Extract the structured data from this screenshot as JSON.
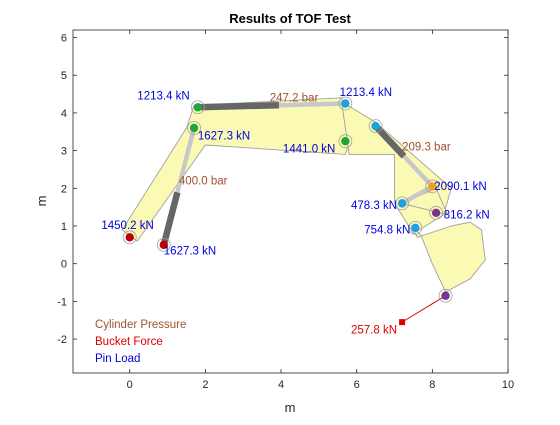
{
  "chart_data": {
    "type": "scatter",
    "title": "Results of TOF Test",
    "xlabel": "m",
    "ylabel": "m",
    "xlim": [
      -1.5,
      10
    ],
    "ylim": [
      -2.9,
      6.2
    ],
    "xticks": [
      0,
      2,
      4,
      6,
      8,
      10
    ],
    "yticks": [
      -2,
      -1,
      0,
      1,
      2,
      3,
      4,
      5,
      6
    ],
    "grid": false,
    "links": [
      {
        "name": "boom",
        "outline": [
          [
            -0.2,
            0.9
          ],
          [
            1.5,
            3.6
          ],
          [
            1.7,
            4.2
          ],
          [
            5.6,
            4.4
          ],
          [
            5.9,
            3.5
          ],
          [
            5.7,
            2.9
          ],
          [
            2.0,
            3.15
          ],
          [
            0.2,
            0.6
          ]
        ]
      },
      {
        "name": "arm",
        "outline": [
          [
            5.6,
            4.3
          ],
          [
            6.5,
            3.75
          ],
          [
            8.5,
            2.0
          ],
          [
            8.3,
            1.3
          ],
          [
            7.5,
            0.8
          ],
          [
            7.0,
            1.6
          ],
          [
            7.0,
            2.9
          ],
          [
            5.8,
            2.9
          ]
        ]
      },
      {
        "name": "bucket",
        "outline": [
          [
            7.45,
            1.0
          ],
          [
            7.6,
            0.7
          ],
          [
            8.5,
            1.0
          ],
          [
            9.0,
            1.1
          ],
          [
            9.3,
            0.9
          ],
          [
            9.4,
            0.1
          ],
          [
            9.0,
            -0.4
          ],
          [
            8.35,
            -0.75
          ],
          [
            8.0,
            0.0
          ],
          [
            7.7,
            0.75
          ]
        ]
      },
      {
        "name": "bucket-link",
        "outline": [
          [
            7.2,
            1.6
          ],
          [
            8.1,
            2.0
          ],
          [
            8.4,
            1.3
          ]
        ]
      }
    ],
    "cylinders": [
      {
        "name": "boom-cylinder",
        "from": [
          0.9,
          0.5
        ],
        "to": [
          1.7,
          3.6
        ],
        "split": 0.45,
        "label": "400.0 bar",
        "label_at": [
          1.3,
          2.1
        ]
      },
      {
        "name": "arm-cylinder",
        "from": [
          1.8,
          4.15
        ],
        "to": [
          5.7,
          4.25
        ],
        "split": 0.55,
        "label": "247.2 bar",
        "label_at": [
          3.7,
          4.3
        ]
      },
      {
        "name": "bucket-cylinder",
        "from": [
          6.5,
          3.65
        ],
        "to": [
          8.0,
          2.05
        ],
        "split": 0.5,
        "label": "209.3 bar",
        "label_at": [
          7.2,
          3.0
        ]
      },
      {
        "name": "bucket-link-rod",
        "from": [
          7.2,
          1.6
        ],
        "to": [
          8.0,
          2.05
        ],
        "split": 0.0
      }
    ],
    "pins": [
      {
        "name": "boom-foot-pin",
        "x": 0.0,
        "y": 0.7,
        "color": "#c00000",
        "label": "1450.2 kN",
        "label_at": [
          -0.75,
          0.92
        ]
      },
      {
        "name": "boom-cylinder-base-pin",
        "x": 0.9,
        "y": 0.5,
        "color": "#c00000",
        "label": "1627.3 kN",
        "label_at": [
          0.9,
          0.25
        ]
      },
      {
        "name": "boom-cylinder-rod-pin",
        "x": 1.7,
        "y": 3.6,
        "color": "#22a539",
        "label": "1627.3 kN",
        "label_at": [
          1.8,
          3.3
        ]
      },
      {
        "name": "arm-cylinder-base-pin",
        "x": 1.8,
        "y": 4.15,
        "color": "#22a539",
        "label": "1213.4 kN",
        "label_at": [
          0.2,
          4.35
        ]
      },
      {
        "name": "arm-cylinder-rod-pin",
        "x": 5.7,
        "y": 4.25,
        "color": "#1ea0e0",
        "label": "1213.4 kN",
        "label_at": [
          5.55,
          4.45
        ]
      },
      {
        "name": "boom-tip-pin",
        "x": 5.7,
        "y": 3.25,
        "color": "#22a539",
        "label": "1441.0 kN",
        "label_at": [
          4.05,
          2.95
        ]
      },
      {
        "name": "bucket-cylinder-base-pin",
        "x": 6.5,
        "y": 3.65,
        "color": "#1ea0e0",
        "label": "",
        "label_at": [
          0,
          0
        ]
      },
      {
        "name": "bucket-cylinder-rod-pin",
        "x": 8.0,
        "y": 2.05,
        "color": "#f0a020",
        "label": "2090.1 kN",
        "label_at": [
          8.05,
          1.95
        ]
      },
      {
        "name": "link-pin",
        "x": 7.2,
        "y": 1.6,
        "color": "#1ea0e0",
        "label": "478.3 kN",
        "label_at": [
          5.85,
          1.45
        ]
      },
      {
        "name": "bucket-link-pin",
        "x": 8.1,
        "y": 1.35,
        "color": "#7a3490",
        "label": "816.2 kN",
        "label_at": [
          8.3,
          1.2
        ]
      },
      {
        "name": "arm-tip-pin",
        "x": 7.55,
        "y": 0.95,
        "color": "#1ea0e0",
        "label": "754.8 kN",
        "label_at": [
          6.2,
          0.8
        ]
      },
      {
        "name": "bucket-tip-pin",
        "x": 8.35,
        "y": -0.85,
        "color": "#7a3490",
        "label": "",
        "label_at": [
          0,
          0
        ]
      }
    ],
    "bucket_force": {
      "from": [
        8.35,
        -0.85
      ],
      "to": [
        7.2,
        -1.55
      ],
      "label": "257.8 kN",
      "label_at": [
        5.85,
        -1.85
      ]
    },
    "legend": {
      "placement": "bottom-left",
      "entries": [
        {
          "text": "Cylinder Pressure",
          "color": "#a0522d"
        },
        {
          "text": "Bucket Force",
          "color": "#e00000"
        },
        {
          "text": "Pin Load",
          "color": "#0000e0"
        }
      ]
    },
    "colors": {
      "link_fill": "#fafab4",
      "link_edge": "#a0a0a0",
      "cylinder_barrel": "#666666",
      "cylinder_rod": "#c8c8c8",
      "pressure_label": "#a0522d",
      "force_label": "#e00000",
      "pin_label": "#0000e0"
    }
  }
}
